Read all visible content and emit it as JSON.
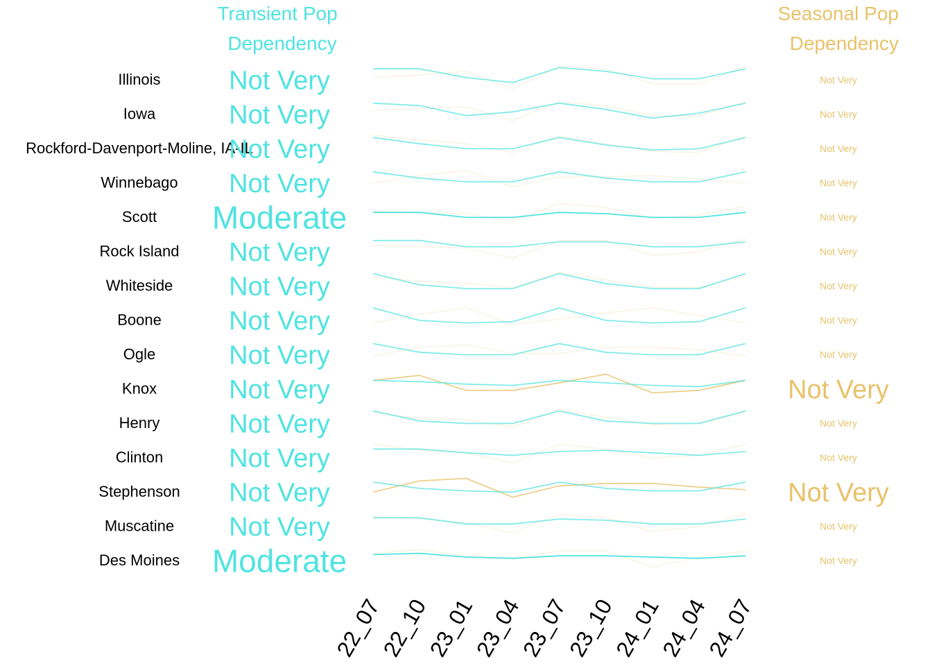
{
  "colors": {
    "transient": "#4FE3E0",
    "seasonal": "#E8C26A",
    "text": "#000000"
  },
  "chart_data": {
    "type": "line",
    "headers": {
      "transient": [
        "Transient Pop",
        "Dependency"
      ],
      "seasonal": [
        "Seasonal Pop",
        "Dependency"
      ]
    },
    "x": [
      "22_07",
      "22_10",
      "23_01",
      "23_04",
      "23_07",
      "23_10",
      "24_01",
      "24_04",
      "24_07"
    ],
    "rows": [
      {
        "region": "Illinois",
        "transient_label": "Not Very",
        "seasonal_label": "Not Very",
        "transient_emph": 1,
        "seasonal_emph": 0,
        "transient": [
          0.8,
          0.8,
          0.45,
          0.25,
          0.85,
          0.7,
          0.4,
          0.4,
          0.8
        ],
        "seasonal": [
          0.45,
          0.55,
          0.7,
          0.0,
          0.9,
          0.8,
          0.2,
          0.2,
          0.9
        ]
      },
      {
        "region": "Iowa",
        "transient_label": "Not Very",
        "seasonal_label": "Not Very",
        "transient_emph": 1,
        "seasonal_emph": 0,
        "transient": [
          0.8,
          0.7,
          0.3,
          0.45,
          0.8,
          0.55,
          0.2,
          0.4,
          0.8
        ],
        "seasonal": [
          0.5,
          0.6,
          0.65,
          0.1,
          0.85,
          0.7,
          0.3,
          0.3,
          0.85
        ]
      },
      {
        "region": "Rockford-Davenport-Moline, IA-IL",
        "transient_label": "Not Very",
        "seasonal_label": "Not Very",
        "transient_emph": 1,
        "seasonal_emph": 0,
        "transient": [
          0.8,
          0.55,
          0.35,
          0.35,
          0.8,
          0.5,
          0.3,
          0.35,
          0.8
        ],
        "seasonal": [
          0.9,
          0.7,
          0.55,
          0.2,
          0.85,
          0.55,
          0.25,
          0.2,
          0.85
        ]
      },
      {
        "region": "Winnebago",
        "transient_label": "Not Very",
        "seasonal_label": "Not Very",
        "transient_emph": 1,
        "seasonal_emph": 0,
        "transient": [
          0.8,
          0.55,
          0.4,
          0.4,
          0.8,
          0.55,
          0.4,
          0.4,
          0.8
        ],
        "seasonal": [
          0.35,
          0.65,
          0.85,
          0.2,
          0.6,
          0.6,
          0.65,
          0.5,
          0.35
        ]
      },
      {
        "region": "Scott",
        "transient_label": "Moderate",
        "seasonal_label": "Not Very",
        "transient_emph": 2,
        "seasonal_emph": 0,
        "transient": [
          0.55,
          0.55,
          0.35,
          0.35,
          0.55,
          0.5,
          0.35,
          0.35,
          0.55
        ],
        "seasonal": [
          0.6,
          0.55,
          0.5,
          0.2,
          0.9,
          0.75,
          0.3,
          0.45,
          0.8
        ]
      },
      {
        "region": "Rock Island",
        "transient_label": "Not Very",
        "seasonal_label": "Not Very",
        "transient_emph": 1,
        "seasonal_emph": 0,
        "transient": [
          0.8,
          0.8,
          0.55,
          0.55,
          0.75,
          0.75,
          0.55,
          0.55,
          0.75
        ],
        "seasonal": [
          0.6,
          0.55,
          0.5,
          0.1,
          0.8,
          0.8,
          0.2,
          0.35,
          0.85
        ]
      },
      {
        "region": "Whiteside",
        "transient_label": "Not Very",
        "seasonal_label": "Not Very",
        "transient_emph": 1,
        "seasonal_emph": 0,
        "transient": [
          0.85,
          0.4,
          0.25,
          0.25,
          0.85,
          0.45,
          0.25,
          0.25,
          0.85
        ],
        "seasonal": [
          0.7,
          0.55,
          0.45,
          0.3,
          0.9,
          0.6,
          0.3,
          0.3,
          0.75
        ]
      },
      {
        "region": "Boone",
        "transient_label": "Not Very",
        "seasonal_label": "Not Very",
        "transient_emph": 1,
        "seasonal_emph": 0,
        "transient": [
          0.85,
          0.35,
          0.25,
          0.3,
          0.85,
          0.35,
          0.25,
          0.3,
          0.85
        ],
        "seasonal": [
          0.25,
          0.6,
          0.85,
          0.2,
          0.4,
          0.65,
          0.85,
          0.55,
          0.25
        ]
      },
      {
        "region": "Ogle",
        "transient_label": "Not Very",
        "seasonal_label": "Not Very",
        "transient_emph": 1,
        "seasonal_emph": 0,
        "transient": [
          0.8,
          0.45,
          0.35,
          0.35,
          0.8,
          0.45,
          0.35,
          0.35,
          0.8
        ],
        "seasonal": [
          0.3,
          0.65,
          0.75,
          0.4,
          0.4,
          0.65,
          0.65,
          0.55,
          0.3
        ]
      },
      {
        "region": "Knox",
        "transient_label": "Not Very",
        "seasonal_label": "Not Very",
        "transient_emph": 1,
        "seasonal_emph": 1,
        "transient": [
          0.7,
          0.65,
          0.55,
          0.5,
          0.7,
          0.6,
          0.5,
          0.45,
          0.7
        ],
        "seasonal": [
          0.7,
          0.9,
          0.3,
          0.3,
          0.6,
          0.95,
          0.2,
          0.3,
          0.7
        ]
      },
      {
        "region": "Henry",
        "transient_label": "Not Very",
        "seasonal_label": "Not Very",
        "transient_emph": 1,
        "seasonal_emph": 0,
        "transient": [
          0.85,
          0.45,
          0.35,
          0.35,
          0.85,
          0.45,
          0.35,
          0.35,
          0.85
        ],
        "seasonal": [
          0.8,
          0.55,
          0.5,
          0.2,
          0.9,
          0.6,
          0.3,
          0.35,
          0.8
        ]
      },
      {
        "region": "Clinton",
        "transient_label": "Not Very",
        "seasonal_label": "Not Very",
        "transient_emph": 1,
        "seasonal_emph": 0,
        "transient": [
          0.7,
          0.7,
          0.55,
          0.45,
          0.6,
          0.65,
          0.55,
          0.45,
          0.6
        ],
        "seasonal": [
          0.9,
          0.65,
          0.55,
          0.15,
          0.9,
          0.7,
          0.35,
          0.45,
          0.9
        ]
      },
      {
        "region": "Stephenson",
        "transient_label": "Not Very",
        "seasonal_label": "Not Very",
        "transient_emph": 1,
        "seasonal_emph": 1,
        "transient": [
          0.75,
          0.5,
          0.4,
          0.35,
          0.75,
          0.5,
          0.4,
          0.4,
          0.75
        ],
        "seasonal": [
          0.35,
          0.8,
          0.9,
          0.15,
          0.6,
          0.7,
          0.7,
          0.55,
          0.45
        ]
      },
      {
        "region": "Muscatine",
        "transient_label": "Not Very",
        "seasonal_label": "Not Very",
        "transient_emph": 1,
        "seasonal_emph": 0,
        "transient": [
          0.7,
          0.7,
          0.45,
          0.45,
          0.65,
          0.6,
          0.45,
          0.45,
          0.65
        ],
        "seasonal": [
          0.75,
          0.65,
          0.5,
          0.1,
          0.85,
          0.7,
          0.15,
          0.35,
          0.85
        ]
      },
      {
        "region": "Des Moines",
        "transient_label": "Moderate",
        "seasonal_label": "Not Very",
        "transient_emph": 2,
        "seasonal_emph": 0,
        "transient": [
          0.6,
          0.65,
          0.5,
          0.45,
          0.55,
          0.55,
          0.5,
          0.45,
          0.55
        ],
        "seasonal": [
          0.65,
          0.8,
          0.55,
          0.45,
          0.75,
          0.75,
          0.1,
          0.5,
          0.75
        ]
      }
    ]
  }
}
